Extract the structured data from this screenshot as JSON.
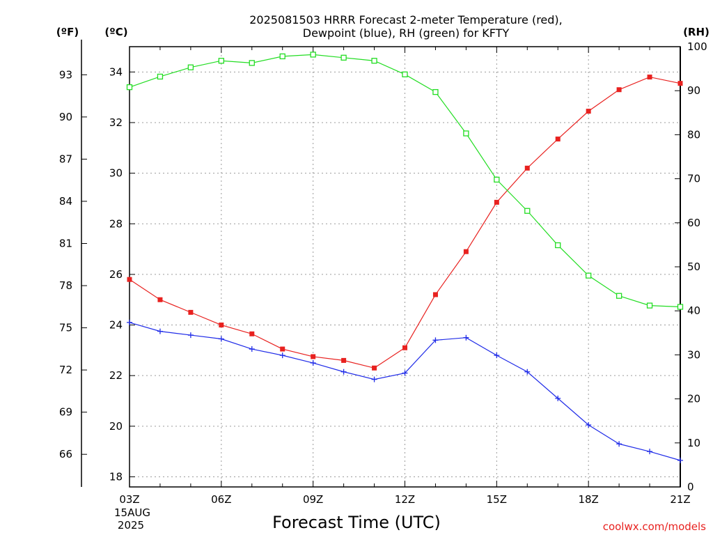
{
  "chart_data": {
    "type": "line",
    "title": "2025081503 HRRR Forecast 2-meter Temperature (red),",
    "subtitle": "Dewpoint (blue), RH (green) for KFTY",
    "xlabel": "Forecast Time (UTC)",
    "credit": "coolwx.com/models",
    "left_unit_outer": "(ºF)",
    "left_unit_inner": "(ºC)",
    "right_unit": "(RH)",
    "x_date_line1": "15AUG",
    "x_date_line2": "2025",
    "x_hours": [
      "03Z",
      "04Z",
      "05Z",
      "06Z",
      "07Z",
      "08Z",
      "09Z",
      "10Z",
      "11Z",
      "12Z",
      "13Z",
      "14Z",
      "15Z",
      "16Z",
      "17Z",
      "18Z",
      "19Z",
      "20Z",
      "21Z"
    ],
    "x_tick_labels": [
      "03Z",
      "06Z",
      "09Z",
      "12Z",
      "15Z",
      "18Z",
      "21Z"
    ],
    "ylim_c": [
      17.6,
      35.0
    ],
    "ylim_rh": [
      0,
      100
    ],
    "yticks_c": [
      18,
      20,
      22,
      24,
      26,
      28,
      30,
      32,
      34
    ],
    "yticks_f": [
      66,
      69,
      72,
      75,
      78,
      81,
      84,
      87,
      90,
      93
    ],
    "yticks_rh": [
      0,
      10,
      20,
      30,
      40,
      50,
      60,
      70,
      80,
      90,
      100
    ],
    "grid": true,
    "series": [
      {
        "name": "Temperature",
        "axis": "c",
        "color": "#e8211f",
        "marker": "filled-square",
        "values": [
          25.8,
          25.0,
          24.5,
          24.0,
          23.65,
          23.05,
          22.75,
          22.6,
          22.3,
          23.1,
          25.2,
          26.9,
          28.85,
          30.2,
          31.35,
          32.45,
          33.3,
          33.8,
          33.55
        ]
      },
      {
        "name": "Dewpoint",
        "axis": "c",
        "color": "#1f2be8",
        "marker": "plus",
        "values": [
          24.1,
          23.75,
          23.6,
          23.45,
          23.05,
          22.8,
          22.5,
          22.15,
          21.85,
          22.1,
          23.4,
          23.5,
          22.8,
          22.15,
          21.1,
          20.05,
          19.3,
          19.0,
          18.65
        ]
      },
      {
        "name": "RH",
        "axis": "rh",
        "color": "#22dd22",
        "marker": "open-square",
        "values": [
          90.8,
          93.2,
          95.3,
          96.8,
          96.3,
          97.8,
          98.2,
          97.5,
          96.8,
          93.7,
          89.7,
          80.3,
          69.8,
          62.7,
          54.9,
          48.0,
          43.4,
          41.2,
          40.9
        ]
      }
    ]
  }
}
